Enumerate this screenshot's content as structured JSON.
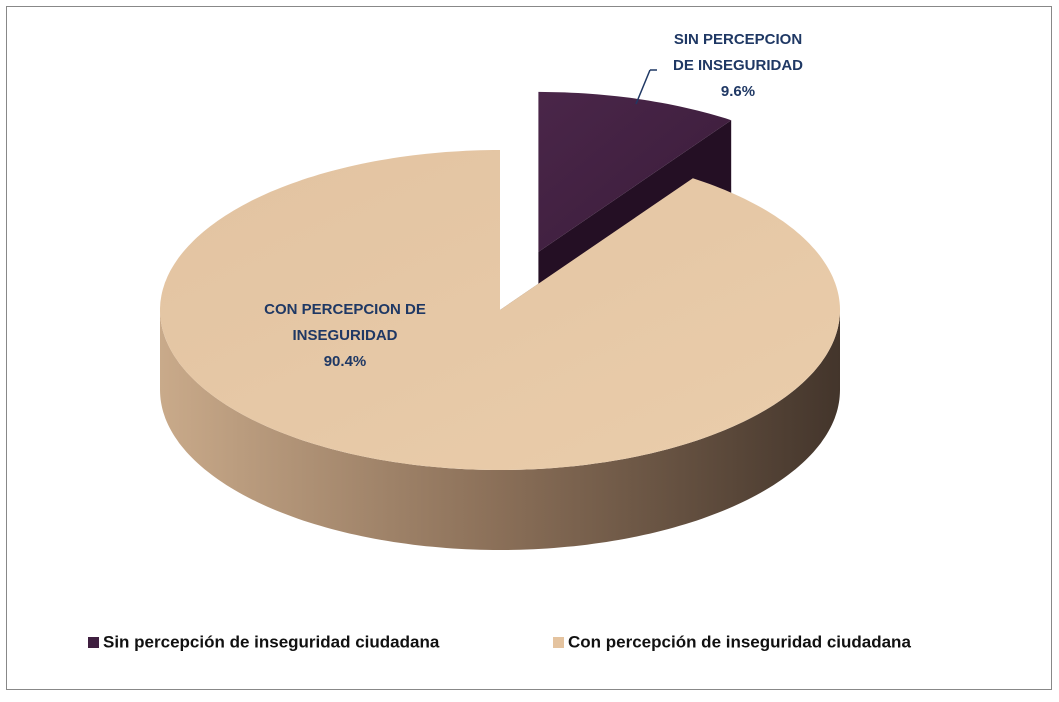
{
  "chart_data": {
    "type": "pie",
    "categories": [
      "Sin percepción de inseguridad ciudadana",
      "Con percepción de inseguridad ciudadana"
    ],
    "labels": [
      [
        "SIN PERCEPCION",
        "DE INSEGURIDAD"
      ],
      [
        "CON PERCEPCION DE",
        "INSEGURIDAD"
      ]
    ],
    "values": [
      9.6,
      90.4
    ],
    "value_labels": [
      "9.6%",
      "90.4%"
    ],
    "colors": [
      "#3f1f40",
      "#e4c39f"
    ],
    "legend": "bottom"
  }
}
